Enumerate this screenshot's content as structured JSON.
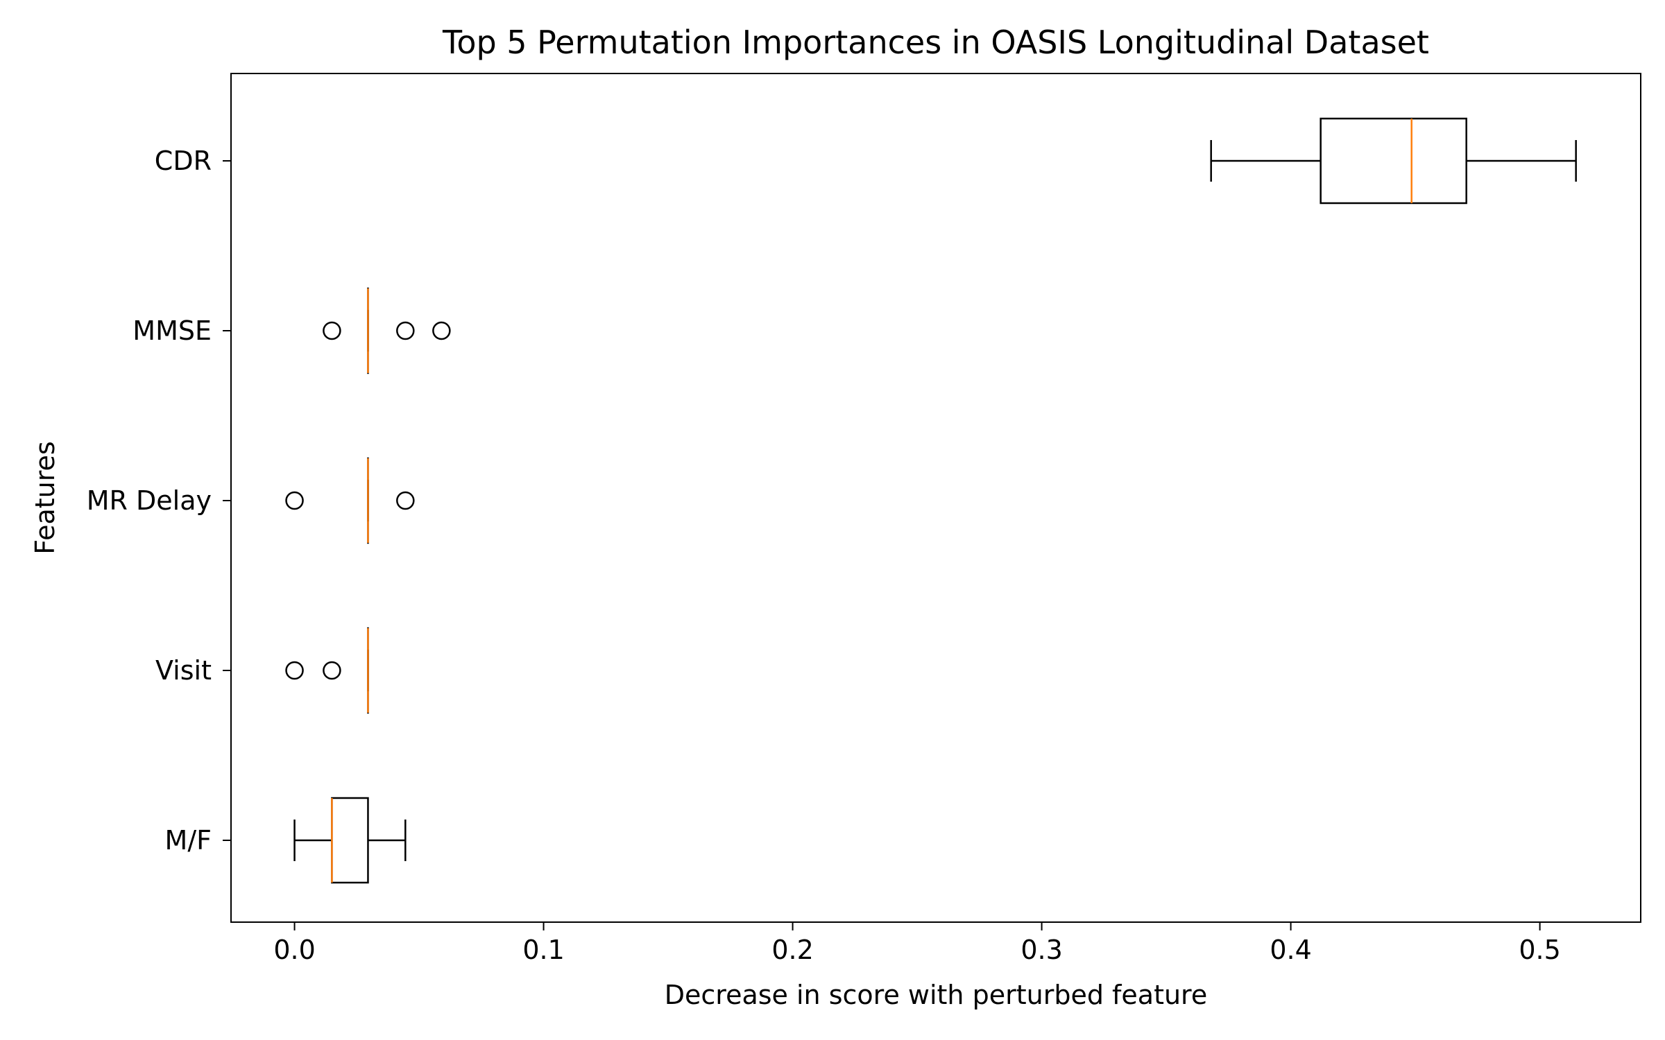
{
  "chart_data": {
    "type": "boxplot",
    "orientation": "horizontal",
    "title": "Top 5 Permutation Importances in OASIS Longitudinal Dataset",
    "xlabel": "Decrease in score with perturbed feature",
    "ylabel": "Features",
    "xlim": [
      -0.0255,
      0.5405
    ],
    "xticks": [
      0.0,
      0.1,
      0.2,
      0.3,
      0.4,
      0.5
    ],
    "xtick_labels": [
      "0.0",
      "0.1",
      "0.2",
      "0.3",
      "0.4",
      "0.5"
    ],
    "grid": false,
    "colors": {
      "box": "#000000",
      "median": "#ff7f0e",
      "flier": "#000000"
    },
    "series": [
      {
        "name": "CDR",
        "whislo": 0.368,
        "q1": 0.412,
        "med": 0.4485,
        "q3": 0.4705,
        "whishi": 0.5145,
        "fliers": []
      },
      {
        "name": "MMSE",
        "whislo": 0.0295,
        "q1": 0.0295,
        "med": 0.0295,
        "q3": 0.0295,
        "whishi": 0.0295,
        "fliers": [
          0.015,
          0.0445,
          0.059
        ]
      },
      {
        "name": "MR Delay",
        "whislo": 0.0295,
        "q1": 0.0295,
        "med": 0.0295,
        "q3": 0.0295,
        "whishi": 0.0295,
        "fliers": [
          0.0,
          0.0445
        ]
      },
      {
        "name": "Visit",
        "whislo": 0.0295,
        "q1": 0.0295,
        "med": 0.0295,
        "q3": 0.0295,
        "whishi": 0.0295,
        "fliers": [
          0.0,
          0.015
        ]
      },
      {
        "name": "M/F",
        "whislo": 0.0,
        "q1": 0.015,
        "med": 0.015,
        "q3": 0.0295,
        "whishi": 0.0445,
        "fliers": []
      }
    ]
  }
}
